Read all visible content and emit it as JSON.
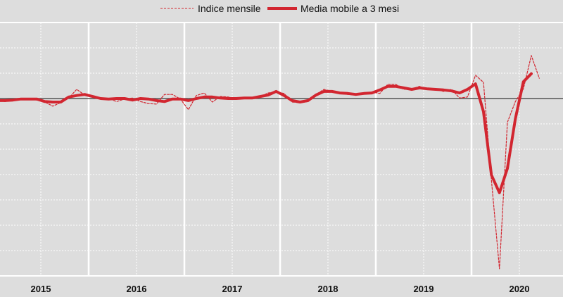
{
  "chart_data": {
    "type": "line",
    "title": "",
    "xlabel": "",
    "ylabel": "",
    "x_tick_labels": [
      "2015",
      "2016",
      "2017",
      "2018",
      "2019",
      "2020"
    ],
    "x_start": "2015-01",
    "frequency": "monthly",
    "ylim": [
      -35,
      15
    ],
    "y_grid_step": 5,
    "y_tick_labels_shown": false,
    "grid": true,
    "reference_line": 0,
    "legend": "top-center",
    "colors": {
      "series": "#d22630",
      "background": "#dddddd",
      "grid": "#ffffff",
      "zero_line": "#555555"
    },
    "series": [
      {
        "name": "Indice mensile",
        "style": "dashed",
        "values": [
          -0.4,
          -0.6,
          -0.3,
          -0.1,
          -0.1,
          -0.3,
          -0.7,
          -1.5,
          -0.8,
          0.1,
          1.8,
          0.7,
          0.4,
          -0.1,
          0,
          -0.6,
          -0.1,
          0.1,
          -0.6,
          -1.0,
          -1.1,
          0.8,
          0.8,
          -0.1,
          -2.2,
          0.6,
          1.1,
          -0.7,
          0.4,
          0.3,
          -0.1,
          0,
          0,
          0.4,
          1.1,
          1.3,
          1.0,
          -0.7,
          -0.8,
          -0.6,
          0.8,
          1.8,
          1.4,
          1.0,
          0.8,
          0.7,
          1.1,
          1.3,
          1.0,
          2.8,
          2.8,
          1.8,
          1.9,
          2.4,
          1.8,
          1.8,
          1.4,
          1.8,
          0.1,
          0.3,
          4.6,
          3.2,
          -16.1,
          -33.6,
          -4.7,
          -0.6,
          1.9,
          8.5,
          4.0
        ]
      },
      {
        "name": "Media mobile a 3 mesi",
        "style": "solid",
        "values": [
          -0.4,
          -0.4,
          -0.3,
          -0.1,
          -0.1,
          -0.1,
          -0.6,
          -0.7,
          -0.7,
          0.3,
          0.6,
          0.8,
          0.4,
          0,
          -0.1,
          0,
          0,
          -0.3,
          0,
          -0.1,
          -0.4,
          -0.6,
          -0.1,
          -0.1,
          -0.4,
          0,
          0.3,
          0.3,
          0.1,
          0,
          0,
          0.1,
          0.1,
          0.4,
          0.7,
          1.4,
          0.6,
          -0.4,
          -0.7,
          -0.4,
          0.7,
          1.4,
          1.4,
          1.1,
          1.0,
          0.8,
          1.0,
          1.1,
          1.7,
          2.4,
          2.4,
          2.1,
          1.8,
          2.1,
          1.9,
          1.8,
          1.7,
          1.5,
          1.1,
          1.8,
          2.9,
          -2.6,
          -15.1,
          -18.6,
          -13.8,
          -4.0,
          3.3,
          4.9
        ]
      }
    ]
  }
}
